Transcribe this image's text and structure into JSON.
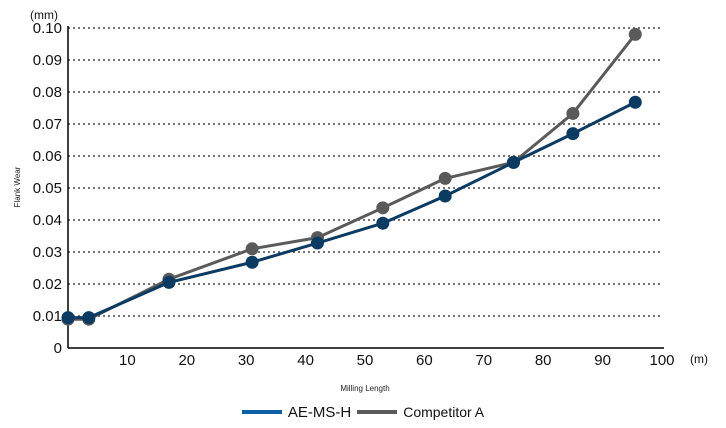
{
  "chart_data": {
    "type": "line",
    "xlabel": "Milling Length",
    "ylabel": "Flank Wear",
    "x_unit": "(m)",
    "y_unit": "(mm)",
    "xlim": [
      0,
      100
    ],
    "ylim": [
      0,
      0.1
    ],
    "x_ticks": [
      "10",
      "20",
      "30",
      "40",
      "50",
      "60",
      "70",
      "80",
      "90",
      "100"
    ],
    "y_ticks": [
      "0",
      "0.01",
      "0.02",
      "0.03",
      "0.04",
      "0.05",
      "0.06",
      "0.07",
      "0.08",
      "0.09",
      "0.10"
    ],
    "grid": "horizontal dotted",
    "legend_position": "bottom",
    "series": [
      {
        "name": "AE-MS-H",
        "color": "#0b3a63",
        "x": [
          0,
          3.5,
          17,
          31,
          42,
          53,
          63.5,
          75,
          85,
          95.5
        ],
        "y": [
          0.0095,
          0.0095,
          0.0205,
          0.0268,
          0.0328,
          0.039,
          0.0475,
          0.058,
          0.067,
          0.0768
        ]
      },
      {
        "name": "Competitor A",
        "color": "#5a5a5a",
        "x": [
          0,
          3.5,
          17,
          31,
          42,
          53,
          63.5,
          75,
          85,
          95.5
        ],
        "y": [
          0.009,
          0.009,
          0.0215,
          0.031,
          0.0345,
          0.0438,
          0.053,
          0.058,
          0.0733,
          0.098
        ]
      }
    ]
  },
  "legend": {
    "items": [
      {
        "label": "AE-MS-H",
        "color": "#0b5fa5"
      },
      {
        "label": "Competitor A",
        "color": "#5a5a5a"
      }
    ]
  }
}
